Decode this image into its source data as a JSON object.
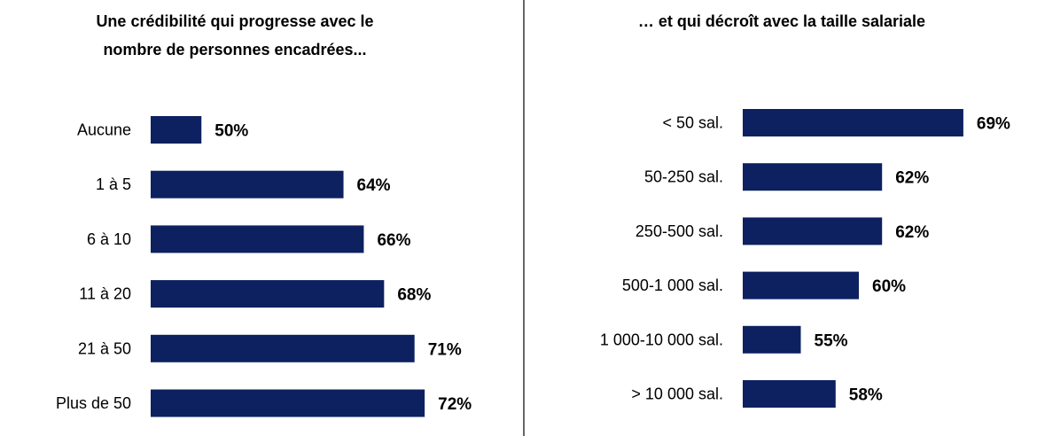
{
  "colors": {
    "bar": "#0d2160",
    "divider": "#333333"
  },
  "chart_data": [
    {
      "type": "bar",
      "orientation": "horizontal",
      "title": [
        "Une crédibilité qui progresse avec le",
        "nombre de personnes encadrées..."
      ],
      "categories": [
        "Aucune",
        "1 à 5",
        "6 à 10",
        "11 à 20",
        "21 à 50",
        "Plus de 50"
      ],
      "values": [
        50,
        64,
        66,
        68,
        71,
        72
      ],
      "value_labels": [
        "50%",
        "64%",
        "66%",
        "68%",
        "71%",
        "72%"
      ],
      "unit": "%",
      "xlim": [
        45,
        100
      ],
      "grid": false,
      "legend": "none"
    },
    {
      "type": "bar",
      "orientation": "horizontal",
      "title": [
        "… et qui décroît avec la taille salariale"
      ],
      "categories": [
        "< 50 sal.",
        "50-250 sal.",
        "250-500 sal.",
        "500-1 000 sal.",
        "1 000-10 000 sal.",
        "> 10 000 sal."
      ],
      "values": [
        69,
        62,
        62,
        60,
        55,
        58
      ],
      "value_labels": [
        "69%",
        "62%",
        "62%",
        "60%",
        "55%",
        "58%"
      ],
      "unit": "%",
      "xlim": [
        50,
        100
      ],
      "grid": false,
      "legend": "none"
    }
  ]
}
